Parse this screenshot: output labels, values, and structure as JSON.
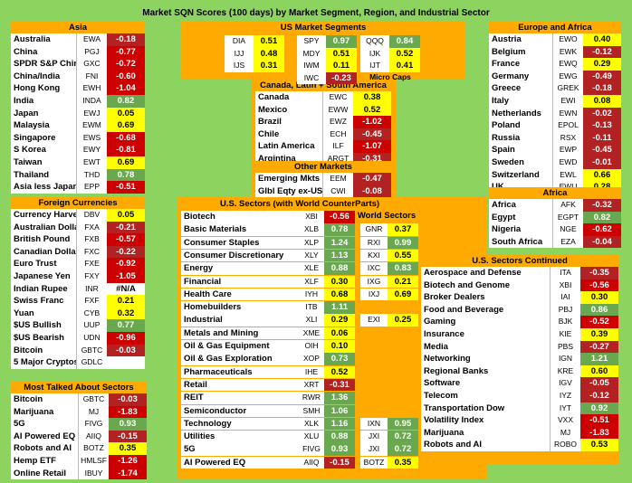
{
  "title": "Market SQN Scores (100 days) by Market Segment, Region, and Industrial Sector",
  "colors": {
    "background": "#8dd35f",
    "header": "#ffaa00",
    "strong_pos": "#6aa84f",
    "pos": "#ffff00",
    "neg": "#cc0000",
    "strong_neg": "#e06666"
  },
  "chart_data": {
    "type": "table",
    "sections": [
      {
        "name": "Asia",
        "rows": [
          [
            "Australia",
            "EWA",
            -0.18
          ],
          [
            "China",
            "PGJ",
            -0.77
          ],
          [
            "SPDR S&P China",
            "GXC",
            -0.72
          ],
          [
            "China/India",
            "FNI",
            -0.6
          ],
          [
            "Hong Kong",
            "EWH",
            -1.04
          ],
          [
            "India",
            "INDA",
            0.82
          ],
          [
            "Japan",
            "EWJ",
            0.05
          ],
          [
            "Malaysia",
            "EWM",
            0.69
          ],
          [
            "Singapore",
            "EWS",
            -0.68
          ],
          [
            "S Korea",
            "EWY",
            -0.81
          ],
          [
            "Taiwan",
            "EWT",
            0.69
          ],
          [
            "Thailand",
            "THD",
            0.78
          ],
          [
            "Asia less Japan",
            "EPP",
            -0.51
          ]
        ]
      },
      {
        "name": "Foreign Currencies",
        "rows": [
          [
            "Currency Harvest",
            "DBV",
            0.05
          ],
          [
            "Australian Dollar",
            "FXA",
            -0.21
          ],
          [
            "British Pound",
            "FXB",
            -0.57
          ],
          [
            "Canadian Dollar",
            "FXC",
            -0.22
          ],
          [
            "Euro Trust",
            "FXE",
            -0.92
          ],
          [
            "Japanese Yen",
            "FXY",
            -1.05
          ],
          [
            "Indian Rupee",
            "INR",
            "#N/A"
          ],
          [
            "Swiss Franc",
            "FXF",
            0.21
          ],
          [
            "Yuan",
            "CYB",
            0.32
          ],
          [
            "$US Bullish",
            "UUP",
            0.77
          ],
          [
            "$US Bearish",
            "UDN",
            -0.96
          ],
          [
            "Bitcoin",
            "GBTC",
            -0.03
          ],
          [
            "5 Major Cryptos",
            "GDLC",
            ""
          ]
        ]
      },
      {
        "name": "Most Talked About Sectors",
        "rows": [
          [
            "Bitcoin",
            "GBTC",
            -0.03
          ],
          [
            "Marijuana",
            "MJ",
            -1.83
          ],
          [
            "5G",
            "FIVG",
            0.93
          ],
          [
            "AI Powered EQ",
            "AIIQ",
            -0.15
          ],
          [
            "Robots and AI",
            "BOTZ",
            0.35
          ],
          [
            "Hemp ETF",
            "HMLSF",
            -1.26
          ],
          [
            "Online Retail",
            "IBUY",
            -1.74
          ]
        ]
      },
      {
        "name": "US Market Segments",
        "rows": [
          [
            "",
            "DIA",
            0.51
          ],
          [
            "",
            "SPY",
            0.97
          ],
          [
            "",
            "QQQ",
            0.84
          ],
          [
            "",
            "IJJ",
            0.48
          ],
          [
            "",
            "MDY",
            0.51
          ],
          [
            "",
            "IJK",
            0.52
          ],
          [
            "",
            "IJS",
            0.31
          ],
          [
            "",
            "IWM",
            0.11
          ],
          [
            "",
            "IJT",
            0.41
          ],
          [
            "",
            "IWC",
            -0.23
          ]
        ],
        "note": "Micro Caps"
      },
      {
        "name": "Canada, Latin + South America",
        "rows": [
          [
            "Canada",
            "EWC",
            0.38
          ],
          [
            "Mexico",
            "EWW",
            0.52
          ],
          [
            "Brazil",
            "EWZ",
            -1.02
          ],
          [
            "Chile",
            "ECH",
            -0.45
          ],
          [
            "Latin America",
            "ILF",
            -1.07
          ],
          [
            "Argintina",
            "ARGT",
            -0.31
          ]
        ]
      },
      {
        "name": "Other Markets",
        "rows": [
          [
            "Emerging Mkts",
            "EEM",
            -0.47
          ],
          [
            "Glbl Eqty ex-US",
            "CWI",
            -0.08
          ]
        ]
      },
      {
        "name": "U.S. Sectors (with World CounterParts)",
        "rows": [
          [
            "Biotech",
            "XBI",
            -0.56
          ],
          [
            "Basic Materials",
            "XLB",
            0.78
          ],
          [
            "Consumer Staples",
            "XLP",
            1.24
          ],
          [
            "Consumer Discretionary",
            "XLY",
            1.13
          ],
          [
            "Energy",
            "XLE",
            0.88
          ],
          [
            "Financial",
            "XLF",
            0.3
          ],
          [
            "Health Care",
            "IYH",
            0.68
          ],
          [
            "Homebuilders",
            "ITB",
            1.11
          ],
          [
            "Industrial",
            "XLI",
            0.29
          ],
          [
            "Metals and Mining",
            "XME",
            0.06
          ],
          [
            "Oil & Gas Equipment",
            "OIH",
            0.1
          ],
          [
            "Oil & Gas Exploration",
            "XOP",
            0.73
          ],
          [
            "Pharmaceuticals",
            "IHE",
            0.52
          ],
          [
            "Retail",
            "XRT",
            -0.31
          ],
          [
            "REIT",
            "RWR",
            1.36
          ],
          [
            "Semiconductor",
            "SMH",
            1.06
          ],
          [
            "Technology",
            "XLK",
            1.16
          ],
          [
            "Utilities",
            "XLU",
            0.88
          ],
          [
            "5G",
            "FIVG",
            0.93
          ],
          [
            "AI Powered EQ",
            "AIIQ",
            -0.15
          ]
        ]
      },
      {
        "name": "World Sectors",
        "rows": [
          [
            "",
            "GNR",
            0.37
          ],
          [
            "",
            "RXI",
            0.99
          ],
          [
            "",
            "KXI",
            0.55
          ],
          [
            "",
            "IXC",
            0.83
          ],
          [
            "",
            "IXG",
            0.21
          ],
          [
            "",
            "IXJ",
            0.69
          ],
          [
            "",
            "EXI",
            0.25
          ],
          [
            "",
            "IXN",
            0.95
          ],
          [
            "",
            "JXI",
            0.72
          ],
          [
            "",
            "JXI",
            0.72
          ],
          [
            "",
            "BOTZ",
            0.35
          ]
        ]
      },
      {
        "name": "U.S. Sectors Continued",
        "rows": [
          [
            "Aerospace and Defense",
            "ITA",
            -0.35
          ],
          [
            "Biotech and Genome",
            "XBI",
            -0.56
          ],
          [
            "Broker Dealers",
            "IAI",
            0.3
          ],
          [
            "Food and Beverage",
            "PBJ",
            0.86
          ],
          [
            "Gaming",
            "BJK",
            -0.52
          ],
          [
            "Insurance",
            "KIE",
            0.39
          ],
          [
            "Media",
            "PBS",
            -0.27
          ],
          [
            "Networking",
            "IGN",
            1.21
          ],
          [
            "Regional Banks",
            "KRE",
            0.6
          ],
          [
            "Software",
            "IGV",
            -0.05
          ],
          [
            "Telecom",
            "IYZ",
            -0.12
          ],
          [
            "Transportation Dow",
            "IYT",
            0.92
          ],
          [
            "Volatility Index",
            "VXX",
            -0.51
          ],
          [
            "Marijuana",
            "MJ",
            -1.83
          ],
          [
            "Robots and AI",
            "ROBO",
            0.53
          ]
        ]
      },
      {
        "name": "Europe and Africa",
        "rows": [
          [
            "Austria",
            "EWO",
            0.4
          ],
          [
            "Belgium",
            "EWK",
            -0.12
          ],
          [
            "France",
            "EWQ",
            0.29
          ],
          [
            "Germany",
            "EWG",
            -0.49
          ],
          [
            "Greece",
            "GREK",
            -0.18
          ],
          [
            "Italy",
            "EWI",
            0.08
          ],
          [
            "Netherlands",
            "EWN",
            -0.02
          ],
          [
            "Poland",
            "EPOL",
            -0.13
          ],
          [
            "Russia",
            "RSX",
            -0.11
          ],
          [
            "Spain",
            "EWP",
            -0.45
          ],
          [
            "Sweden",
            "EWD",
            -0.01
          ],
          [
            "Switzerland",
            "EWL",
            0.66
          ],
          [
            "UK",
            "EWU",
            0.28
          ]
        ]
      },
      {
        "name": "Africa",
        "rows": [
          [
            "Africa",
            "AFK",
            -0.32
          ],
          [
            "Egypt",
            "EGPT",
            0.82
          ],
          [
            "Nigeria",
            "NGE",
            -0.62
          ],
          [
            "South Africa",
            "EZA",
            -0.04
          ]
        ]
      }
    ]
  }
}
